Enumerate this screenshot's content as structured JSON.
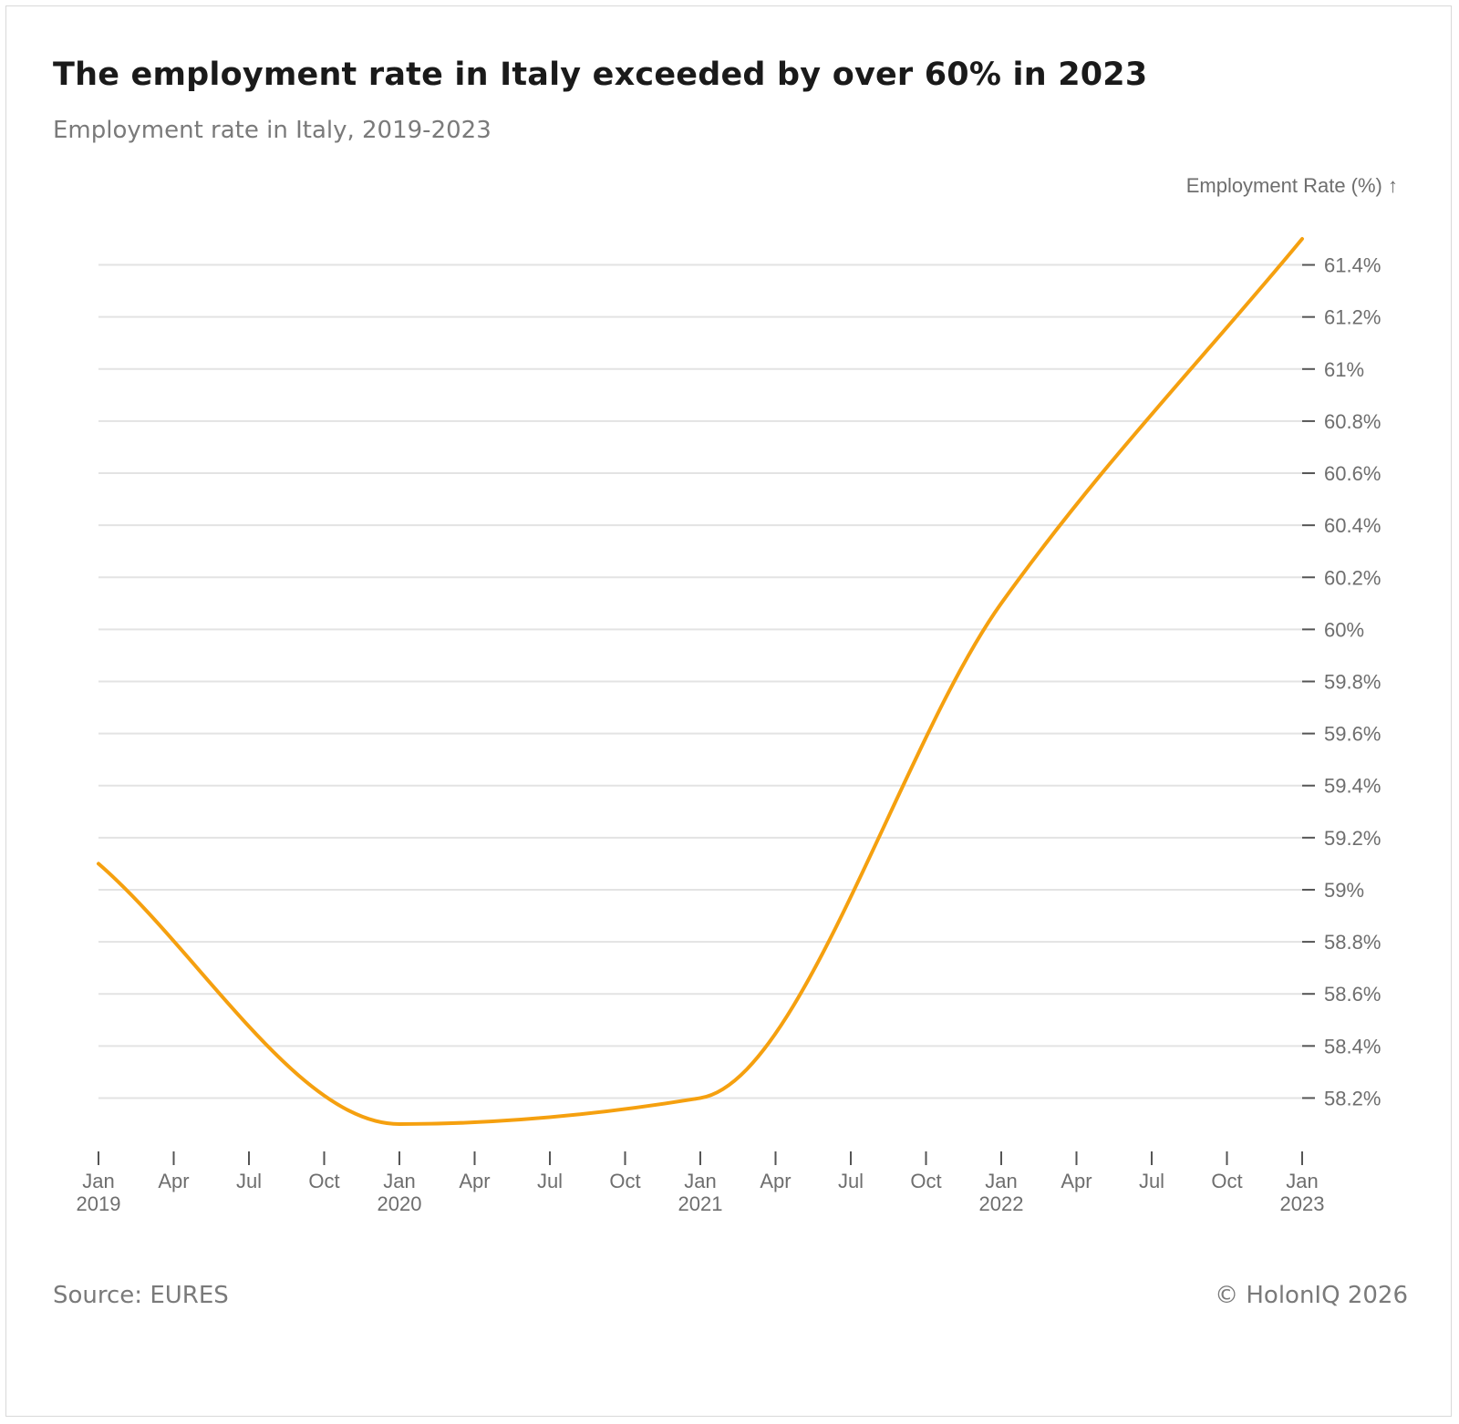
{
  "title": "The employment rate in Italy exceeded by over 60% in 2023",
  "subtitle": "Employment rate in Italy, 2019-2023",
  "source": "Source: EURES",
  "copyright": "© HolonIQ 2026",
  "chart_data": {
    "type": "line",
    "ylabel": "Employment Rate (%) ↑",
    "ylim": [
      58.1,
      61.5
    ],
    "yticks": [
      58.2,
      58.4,
      58.6,
      58.8,
      59,
      59.2,
      59.4,
      59.6,
      59.8,
      60,
      60.2,
      60.4,
      60.6,
      60.8,
      61,
      61.2,
      61.4
    ],
    "ytick_labels": [
      "58.2%",
      "58.4%",
      "58.6%",
      "58.8%",
      "59%",
      "59.2%",
      "59.4%",
      "59.6%",
      "59.8%",
      "60%",
      "60.2%",
      "60.4%",
      "60.6%",
      "60.8%",
      "61%",
      "61.2%",
      "61.4%"
    ],
    "xticks": [
      {
        "month": "2019-01",
        "label": "Jan",
        "year": "2019"
      },
      {
        "month": "2019-04",
        "label": "Apr",
        "year": ""
      },
      {
        "month": "2019-07",
        "label": "Jul",
        "year": ""
      },
      {
        "month": "2019-10",
        "label": "Oct",
        "year": ""
      },
      {
        "month": "2020-01",
        "label": "Jan",
        "year": "2020"
      },
      {
        "month": "2020-04",
        "label": "Apr",
        "year": ""
      },
      {
        "month": "2020-07",
        "label": "Jul",
        "year": ""
      },
      {
        "month": "2020-10",
        "label": "Oct",
        "year": ""
      },
      {
        "month": "2021-01",
        "label": "Jan",
        "year": "2021"
      },
      {
        "month": "2021-04",
        "label": "Apr",
        "year": ""
      },
      {
        "month": "2021-07",
        "label": "Jul",
        "year": ""
      },
      {
        "month": "2021-10",
        "label": "Oct",
        "year": ""
      },
      {
        "month": "2022-01",
        "label": "Jan",
        "year": "2022"
      },
      {
        "month": "2022-04",
        "label": "Apr",
        "year": ""
      },
      {
        "month": "2022-07",
        "label": "Jul",
        "year": ""
      },
      {
        "month": "2022-10",
        "label": "Oct",
        "year": ""
      },
      {
        "month": "2023-01",
        "label": "Jan",
        "year": "2023"
      }
    ],
    "xlim": [
      "2019-01",
      "2023-01"
    ],
    "grid": true,
    "line_color": "#f5a00f",
    "series": [
      {
        "values": [
          {
            "x": "2019-01",
            "y": 59.1
          },
          {
            "x": "2020-01",
            "y": 58.1
          },
          {
            "x": "2021-01",
            "y": 58.2
          },
          {
            "x": "2022-01",
            "y": 60.1
          },
          {
            "x": "2023-01",
            "y": 61.5
          }
        ]
      }
    ]
  }
}
